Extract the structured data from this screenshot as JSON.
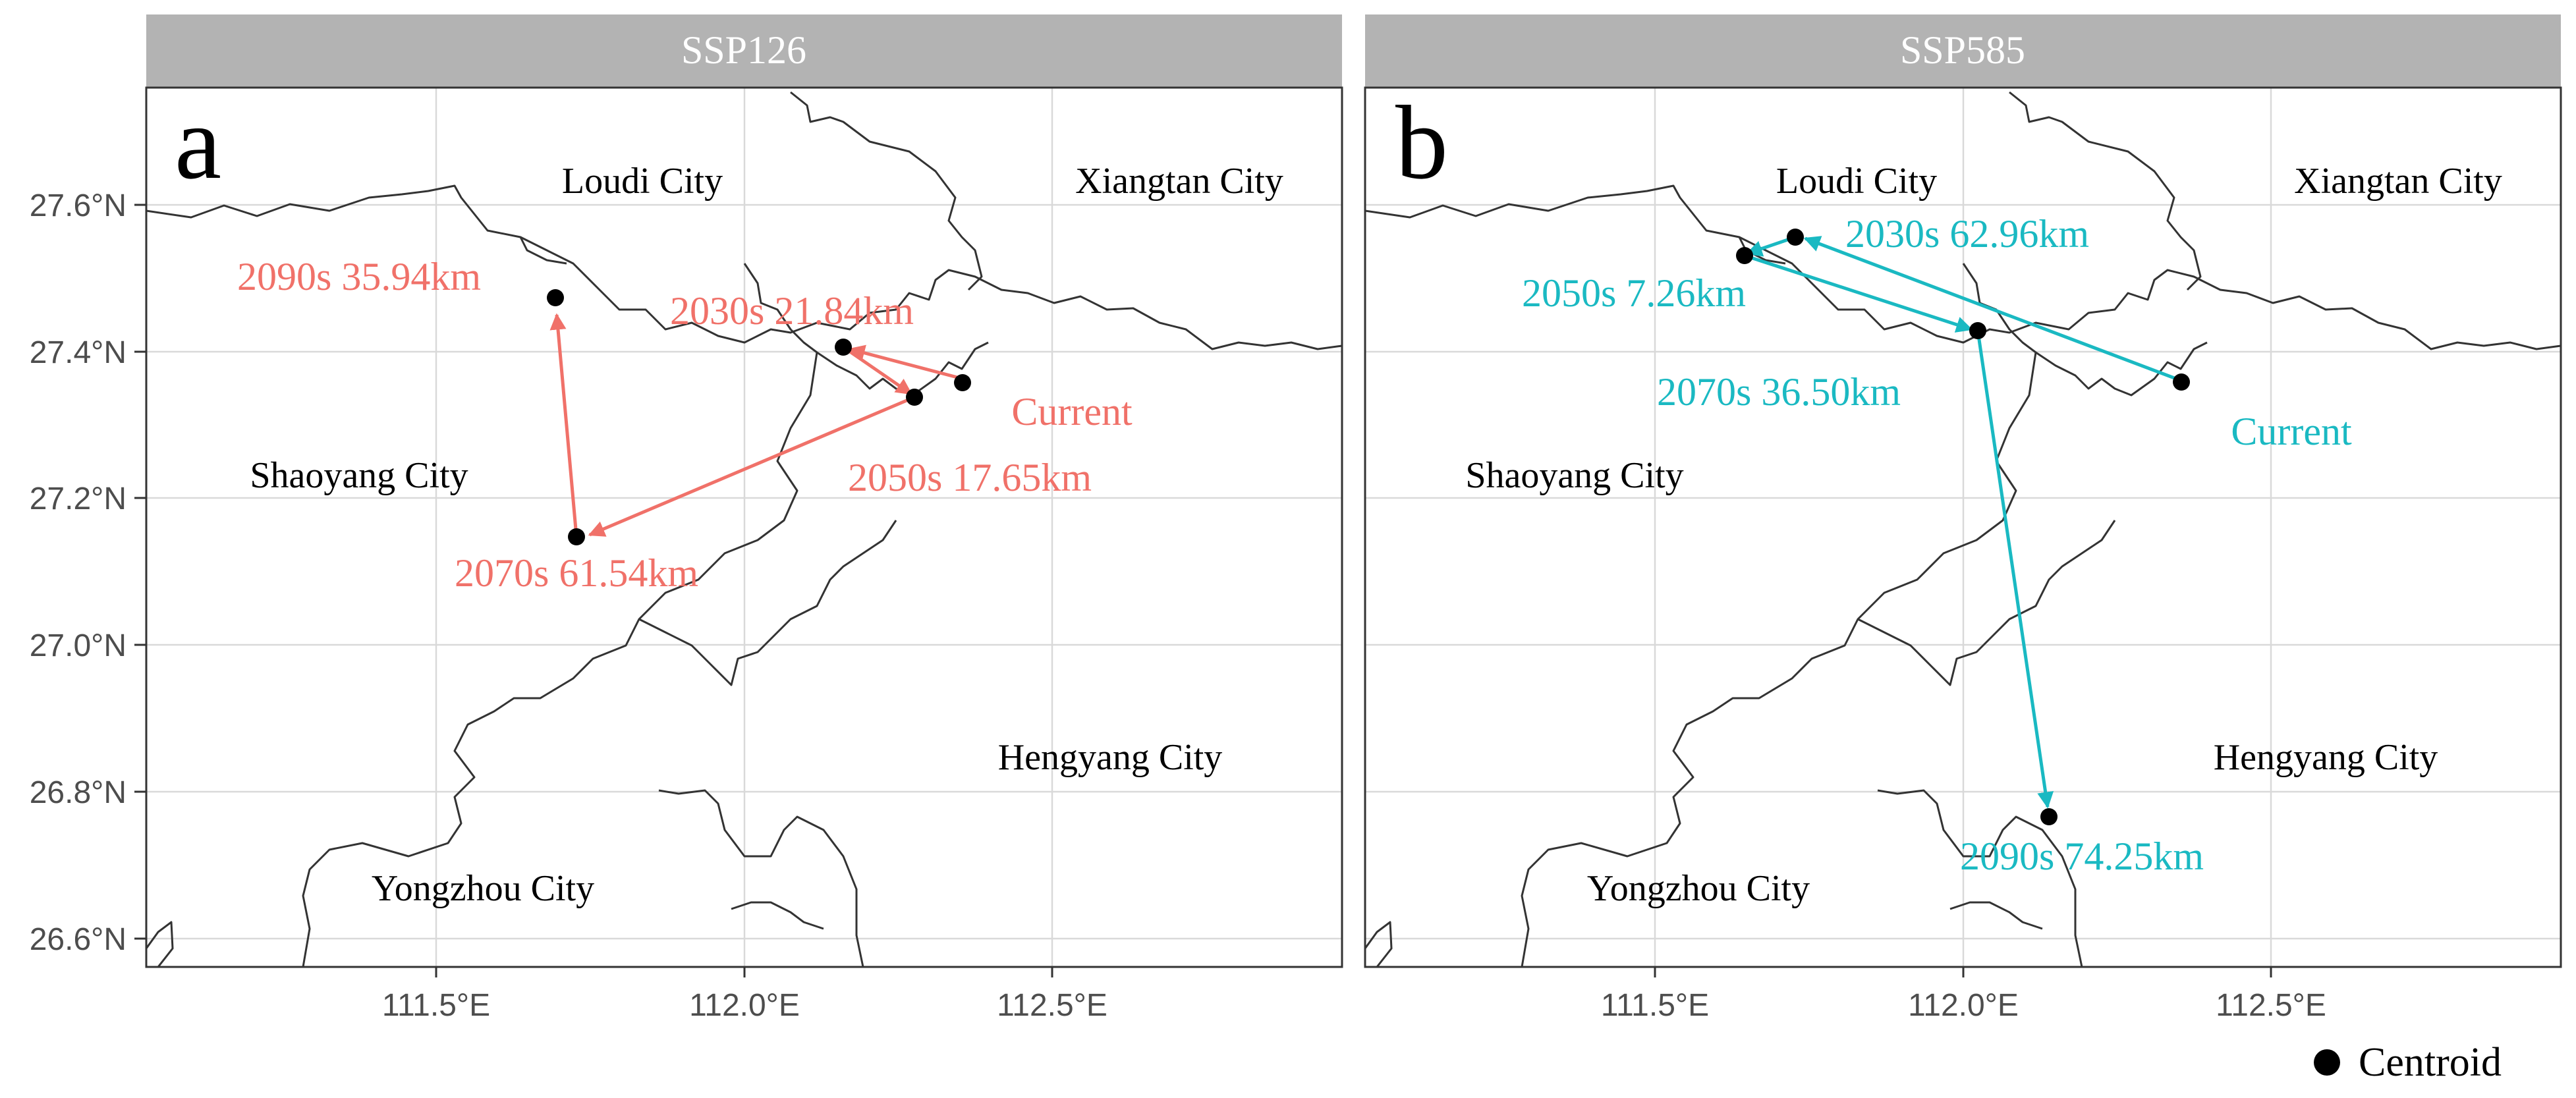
{
  "legend": {
    "label": "Centroid",
    "marker_color": "#000000"
  },
  "x_ticks": [
    "111.5°E",
    "112.0°E",
    "112.5°E"
  ],
  "y_ticks": [
    "26.6°N",
    "26.8°N",
    "27.0°N",
    "27.2°N",
    "27.4°N",
    "27.6°N"
  ],
  "panels": [
    {
      "strip": "SSP126",
      "letter": "a",
      "color": "#f07169",
      "cities": [
        "Loudi City",
        "Xiangtan City",
        "Shaoyang City",
        "Hengyang City",
        "Yongzhou City"
      ],
      "current_label": "Current",
      "points": [
        {
          "label": "2030s 21.84km",
          "lon": 112.16,
          "lat": 27.41
        },
        {
          "label": "2050s 17.65km",
          "lon": 112.26,
          "lat": 27.34
        },
        {
          "label": "2070s 61.54km",
          "lon": 111.75,
          "lat": 27.15
        },
        {
          "label": "2090s 35.94km",
          "lon": 111.72,
          "lat": 27.47
        }
      ],
      "current": {
        "lon": 112.35,
        "lat": 27.36
      }
    },
    {
      "strip": "SSP585",
      "letter": "b",
      "color": "#1ab9c2",
      "cities": [
        "Loudi City",
        "Xiangtan City",
        "Shaoyang City",
        "Hengyang City",
        "Yongzhou City"
      ],
      "current_label": "Current",
      "points": [
        {
          "label": "2030s 62.96km",
          "lon": 111.75,
          "lat": 27.56
        },
        {
          "label": "2050s 7.26km",
          "lon": 111.67,
          "lat": 27.53
        },
        {
          "label": "2070s 36.50km",
          "lon": 112.03,
          "lat": 27.43
        },
        {
          "label": "2090s 74.25km",
          "lon": 112.14,
          "lat": 26.77
        }
      ],
      "current": {
        "lon": 112.35,
        "lat": 27.36
      }
    }
  ]
}
